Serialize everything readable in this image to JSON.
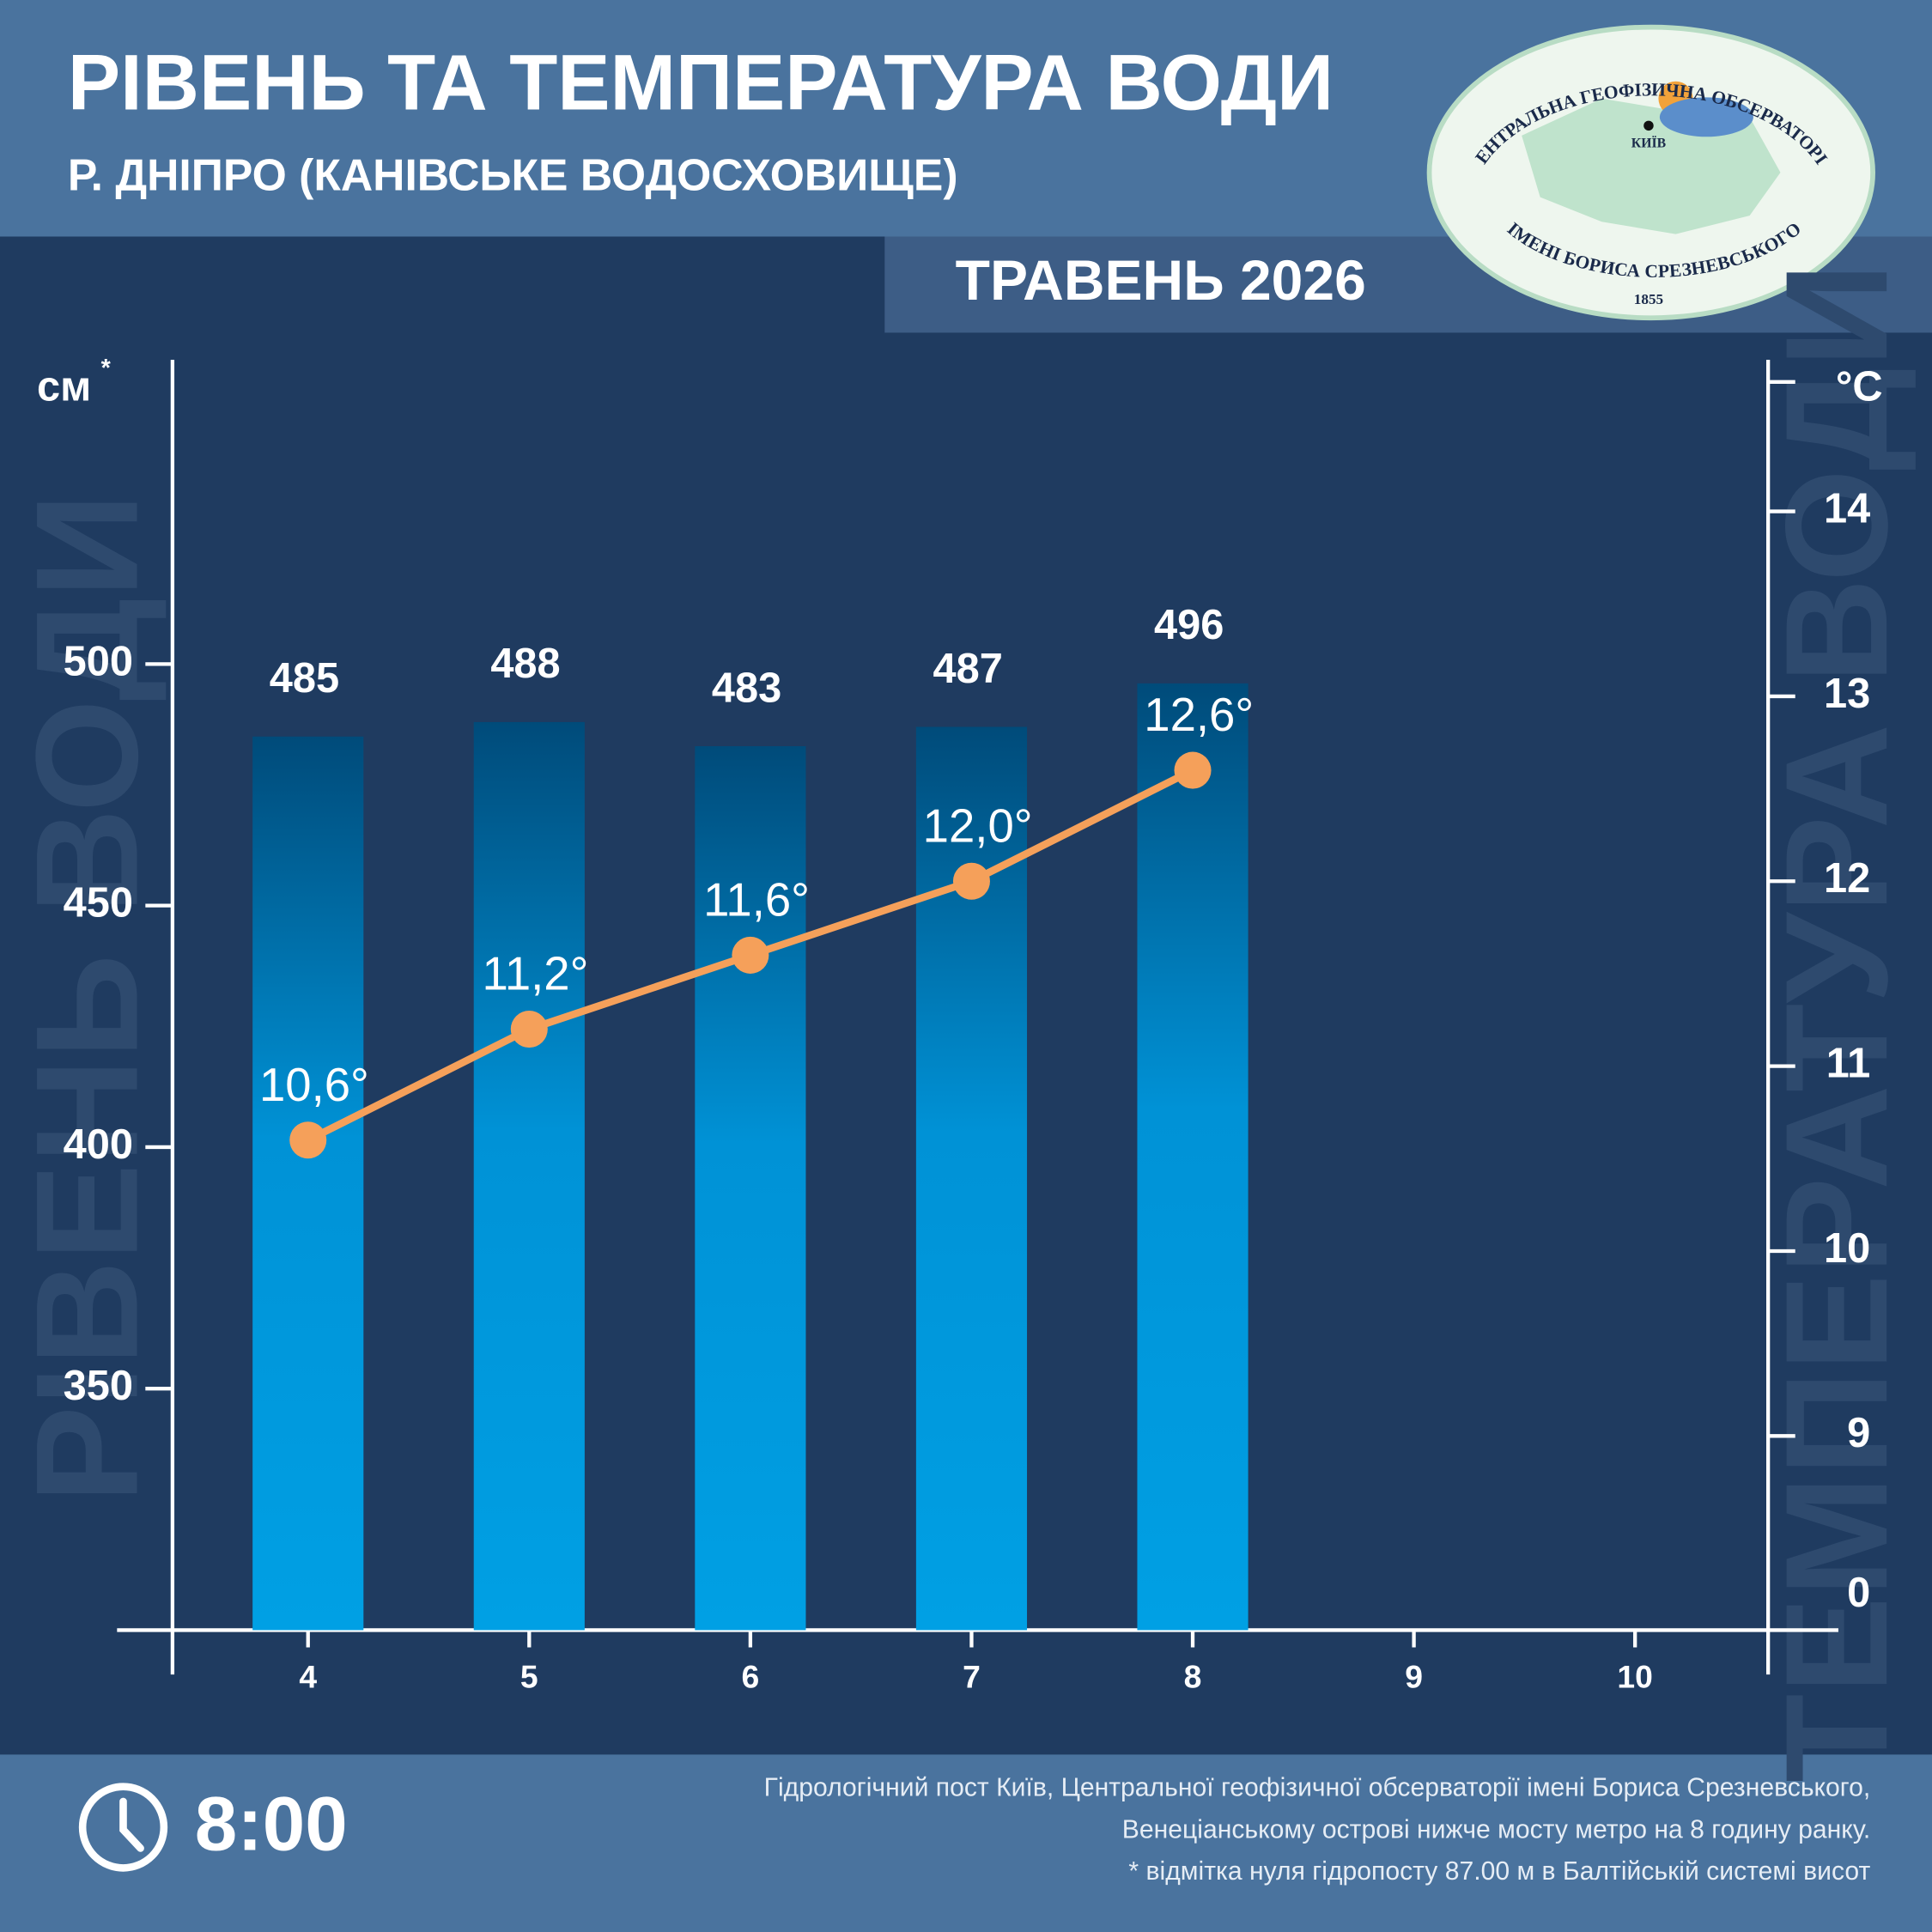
{
  "title": "РІВЕНЬ ТА ТЕМПЕРАТУРА ВОДИ",
  "subtitle": "Р. ДНІПРО (КАНІВСЬКЕ ВОДОСХОВИЩЕ)",
  "period": "ТРАВЕНЬ 2026",
  "logo": {
    "top": "ЦЕНТРАЛЬНА ГЕОФІЗИЧНА ОБСЕРВАТОРІЯ",
    "city": "КИЇВ",
    "bottom": "ІМЕНІ БОРИСА СРЕЗНЕВСЬКОГО",
    "year": "1855"
  },
  "chart_data": {
    "type": "combo",
    "y_label": "РІВЕНЬ ВОДИ",
    "y_unit": "см",
    "y_unit_mark": "*",
    "y2_label": "ТЕМПЕРАТУРА ВОДИ",
    "y2_unit": "°C",
    "categories": [
      "4",
      "5",
      "6",
      "7",
      "8",
      "9",
      "10"
    ],
    "series": [
      {
        "type": "bar",
        "axis": "y",
        "color": "#009fe3",
        "values": [
          485,
          488,
          483,
          487,
          496,
          null,
          null
        ]
      },
      {
        "type": "line",
        "axis": "y2",
        "color": "#f5a05a",
        "values": [
          10.6,
          11.2,
          11.6,
          12.0,
          12.6,
          null,
          null
        ],
        "value_labels": [
          "10,6°",
          "11,2°",
          "11,6°",
          "12,0°",
          "12,6°",
          null,
          null
        ]
      }
    ],
    "ylim": [
      300,
      563
    ],
    "yticks": [
      350,
      400,
      450,
      500
    ],
    "y2lim": [
      7.95,
      14.82
    ],
    "y2ticks": [
      0,
      9,
      10,
      11,
      12,
      13,
      14
    ],
    "y2_axis_break": true
  },
  "footer": {
    "time": "8:00",
    "notes": [
      "Гідрологічний пост Київ, Центральної геофізичної обсерваторії імені Бориса Срезневського,",
      "Венеціанському острові нижче мосту метро  на 8 годину ранку.",
      "* відмітка нуля гідропосту 87.00 м в Балтійській системі висот"
    ]
  }
}
